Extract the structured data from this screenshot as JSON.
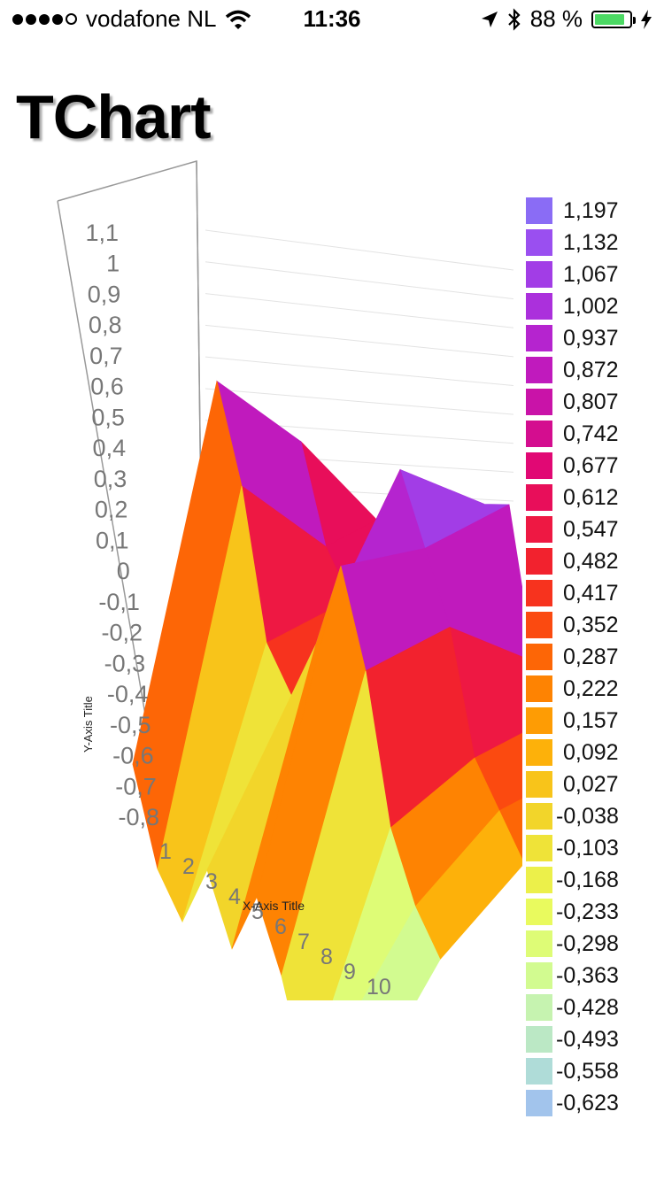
{
  "status_bar": {
    "carrier": "vodafone NL",
    "time": "11:36",
    "battery": "88 %",
    "battery_level": 0.88,
    "icons": [
      "signal-dots-icon",
      "wifi-icon",
      "location-arrow-icon",
      "bluetooth-icon",
      "battery-icon",
      "charging-bolt-icon"
    ]
  },
  "page": {
    "title": "TChart"
  },
  "chart_data": {
    "type": "surface-3d",
    "xlabel": "X-Axis Title",
    "ylabel": "Y-Axis Title",
    "x_ticks": [
      "1",
      "2",
      "3",
      "4",
      "5",
      "6",
      "7",
      "8",
      "9",
      "10"
    ],
    "y_ticks": [
      "-0,8",
      "-0,7",
      "-0,6",
      "-0,5",
      "-0,4",
      "-0,3",
      "-0,2",
      "-0,1",
      "0",
      "0,1",
      "0,2",
      "0,3",
      "0,4",
      "0,5",
      "0,6",
      "0,7",
      "0,8",
      "0,9",
      "1",
      "1,1"
    ],
    "ylim": [
      -0.8,
      1.1
    ],
    "legend_position": "right",
    "rows": [
      [
        -0.2,
        -0.5,
        -0.6,
        -0.3,
        -0.5,
        -0.2,
        -0.4,
        -0.7,
        -0.5,
        -0.6
      ],
      [
        1.2,
        0.9,
        0.4,
        0.3,
        0.6,
        1.0,
        0.7,
        0.2,
        0.0,
        -0.1
      ],
      [
        0.9,
        0.6,
        0.5,
        0.6,
        1.2,
        1.0,
        0.8,
        0.4,
        0.3,
        0.2
      ],
      [
        0.5,
        0.7,
        0.8,
        0.9,
        1.0,
        1.1,
        0.6,
        0.5,
        0.4,
        0.3
      ]
    ],
    "legend": [
      {
        "label": "1,197",
        "color": "#8a6cf5"
      },
      {
        "label": "1,132",
        "color": "#9a4ff0"
      },
      {
        "label": "1,067",
        "color": "#a23de6"
      },
      {
        "label": "1,002",
        "color": "#ab30dc"
      },
      {
        "label": "0,937",
        "color": "#b524cf"
      },
      {
        "label": "0,872",
        "color": "#c01abd"
      },
      {
        "label": "0,807",
        "color": "#c913a8"
      },
      {
        "label": "0,742",
        "color": "#d40d8f"
      },
      {
        "label": "0,677",
        "color": "#e10874"
      },
      {
        "label": "0,612",
        "color": "#e80e5a"
      },
      {
        "label": "0,547",
        "color": "#ee1843"
      },
      {
        "label": "0,482",
        "color": "#f2222e"
      },
      {
        "label": "0,417",
        "color": "#f7331e"
      },
      {
        "label": "0,352",
        "color": "#fb4a10"
      },
      {
        "label": "0,287",
        "color": "#fd6606"
      },
      {
        "label": "0,222",
        "color": "#fe8302"
      },
      {
        "label": "0,157",
        "color": "#fe9c04"
      },
      {
        "label": "0,092",
        "color": "#fdb10a"
      },
      {
        "label": "0,027",
        "color": "#f8c41a"
      },
      {
        "label": "-0,038",
        "color": "#f2d52a"
      },
      {
        "label": "-0,103",
        "color": "#efe338"
      },
      {
        "label": "-0,168",
        "color": "#ecf04a"
      },
      {
        "label": "-0,233",
        "color": "#e9fa5e"
      },
      {
        "label": "-0,298",
        "color": "#defc76"
      },
      {
        "label": "-0,363",
        "color": "#d2fb90"
      },
      {
        "label": "-0,428",
        "color": "#c6f3b0"
      },
      {
        "label": "-0,493",
        "color": "#bbe8c5"
      },
      {
        "label": "-0,558",
        "color": "#afdcd8"
      },
      {
        "label": "-0,623",
        "color": "#a2c4ec"
      }
    ]
  }
}
